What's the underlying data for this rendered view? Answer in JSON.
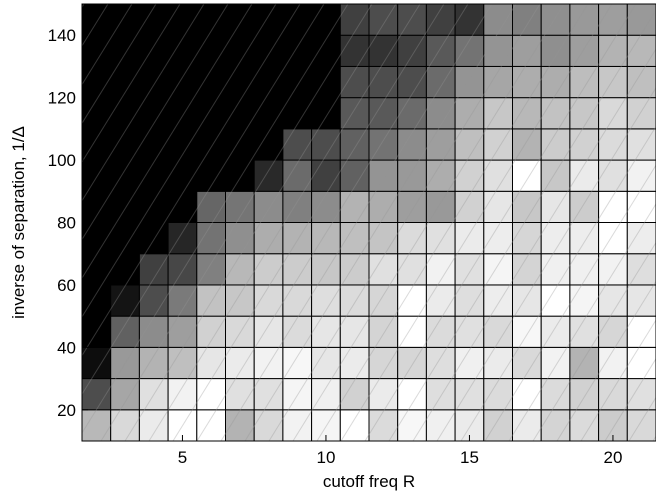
{
  "chart_data": {
    "type": "heatmap",
    "title": "",
    "xlabel": "cutoff freq R",
    "ylabel": "inverse of separation, 1/Δ",
    "x": [
      2,
      3,
      4,
      5,
      6,
      7,
      8,
      9,
      10,
      11,
      12,
      13,
      14,
      15,
      16,
      17,
      18,
      19,
      20,
      21
    ],
    "y": [
      15,
      25,
      35,
      45,
      55,
      65,
      75,
      85,
      95,
      105,
      115,
      125,
      135,
      145
    ],
    "xlim": [
      1.5,
      21.5
    ],
    "ylim": [
      10,
      150
    ],
    "xticks": [
      5,
      10,
      15,
      20
    ],
    "yticks": [
      20,
      40,
      60,
      80,
      100,
      120,
      140
    ],
    "colormap": "gray",
    "clim": [
      0,
      1
    ],
    "values": [
      [
        0.72,
        0.85,
        0.92,
        1.0,
        1.0,
        0.7,
        0.85,
        0.95,
        0.96,
        1.0,
        0.86,
        0.97,
        0.94,
        0.92,
        0.82,
        0.92,
        0.83,
        0.86,
        0.8,
        0.85
      ],
      [
        0.3,
        0.65,
        0.88,
        0.95,
        1.0,
        0.88,
        0.88,
        0.96,
        0.94,
        0.82,
        0.92,
        1.0,
        0.87,
        0.88,
        0.86,
        1.0,
        0.86,
        0.82,
        0.85,
        0.88
      ],
      [
        0.05,
        0.6,
        0.7,
        0.75,
        0.9,
        0.92,
        0.95,
        0.97,
        0.9,
        0.92,
        0.84,
        0.84,
        0.87,
        0.94,
        0.92,
        0.85,
        0.95,
        0.7,
        0.95,
        1.0
      ],
      [
        0.0,
        0.38,
        0.55,
        0.62,
        0.82,
        0.85,
        0.9,
        0.86,
        0.9,
        0.9,
        0.83,
        1.0,
        0.86,
        0.88,
        0.85,
        0.97,
        0.92,
        0.88,
        0.84,
        1.0
      ],
      [
        0.0,
        0.08,
        0.3,
        0.48,
        0.76,
        0.78,
        0.85,
        0.85,
        0.87,
        0.86,
        0.84,
        1.0,
        0.92,
        0.87,
        0.93,
        0.9,
        1.0,
        0.96,
        0.9,
        0.9
      ],
      [
        0.0,
        0.0,
        0.25,
        0.28,
        0.5,
        0.72,
        0.8,
        0.8,
        0.78,
        0.8,
        0.88,
        0.88,
        0.95,
        0.88,
        0.96,
        0.83,
        0.94,
        0.94,
        0.95,
        0.87
      ],
      [
        0.0,
        0.0,
        0.0,
        0.15,
        0.45,
        0.56,
        0.68,
        0.7,
        0.72,
        0.75,
        0.77,
        0.86,
        0.88,
        0.92,
        0.93,
        0.84,
        0.93,
        0.93,
        1.0,
        0.93
      ],
      [
        0.0,
        0.0,
        0.0,
        0.0,
        0.4,
        0.46,
        0.55,
        0.5,
        0.55,
        0.7,
        0.68,
        0.62,
        0.6,
        0.82,
        0.9,
        0.78,
        0.9,
        0.8,
        1.0,
        1.0
      ],
      [
        0.0,
        0.0,
        0.0,
        0.0,
        0.0,
        0.0,
        0.16,
        0.42,
        0.25,
        0.38,
        0.58,
        0.6,
        0.68,
        0.82,
        0.88,
        1.0,
        0.78,
        0.92,
        0.88,
        0.95
      ],
      [
        0.0,
        0.0,
        0.0,
        0.0,
        0.0,
        0.0,
        0.0,
        0.3,
        0.3,
        0.38,
        0.45,
        0.55,
        0.62,
        0.75,
        0.82,
        0.7,
        0.8,
        0.82,
        0.86,
        0.88
      ],
      [
        0.0,
        0.0,
        0.0,
        0.0,
        0.0,
        0.0,
        0.0,
        0.0,
        0.0,
        0.35,
        0.35,
        0.42,
        0.55,
        0.68,
        0.78,
        0.72,
        0.76,
        0.78,
        0.85,
        0.82
      ],
      [
        0.0,
        0.0,
        0.0,
        0.0,
        0.0,
        0.0,
        0.0,
        0.0,
        0.0,
        0.3,
        0.3,
        0.3,
        0.42,
        0.58,
        0.65,
        0.68,
        0.68,
        0.74,
        0.78,
        0.75
      ],
      [
        0.0,
        0.0,
        0.0,
        0.0,
        0.0,
        0.0,
        0.0,
        0.0,
        0.0,
        0.2,
        0.2,
        0.25,
        0.35,
        0.45,
        0.58,
        0.62,
        0.56,
        0.62,
        0.7,
        0.72
      ],
      [
        0.0,
        0.0,
        0.0,
        0.0,
        0.0,
        0.0,
        0.0,
        0.0,
        0.0,
        0.25,
        0.3,
        0.3,
        0.25,
        0.2,
        0.55,
        0.5,
        0.56,
        0.6,
        0.62,
        0.6
      ]
    ]
  }
}
